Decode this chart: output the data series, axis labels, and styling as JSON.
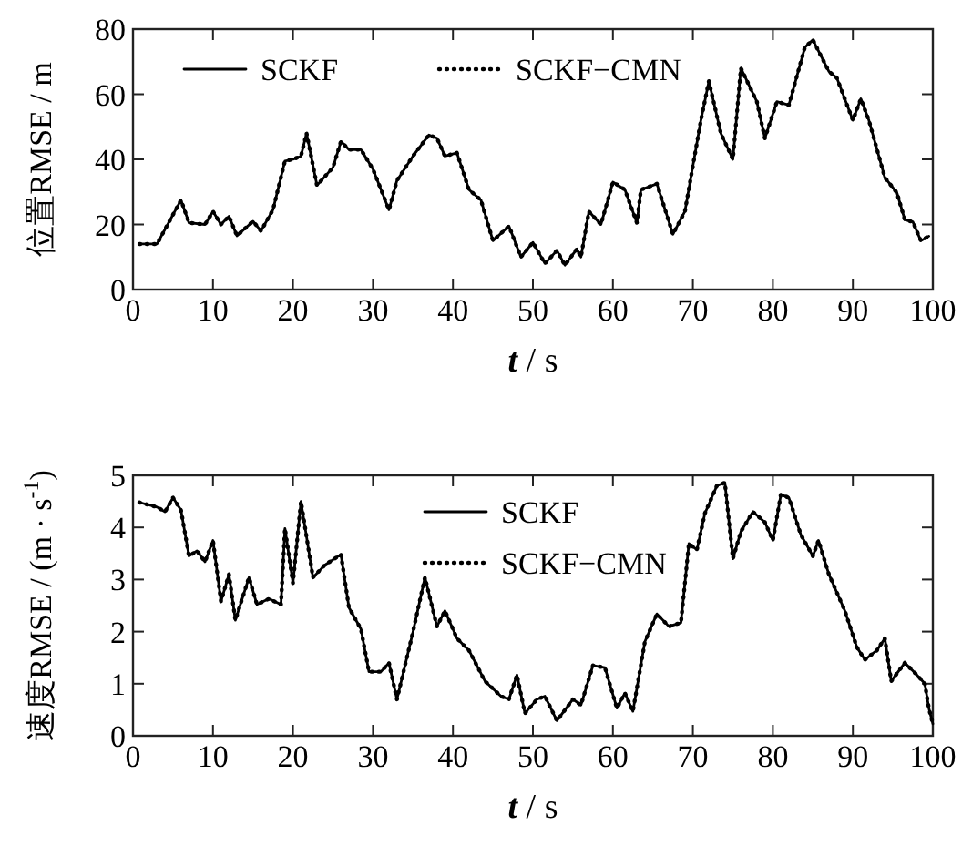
{
  "chart_data": [
    {
      "type": "line",
      "xlabel": "t / s",
      "ylabel": "位置RMSE / m",
      "x": [
        0.8,
        3,
        6,
        7,
        9,
        10,
        11,
        12,
        13,
        15,
        16,
        17.5,
        19,
        20,
        21,
        21.7,
        23,
        25,
        26,
        27,
        28.5,
        30,
        32,
        33,
        35,
        37,
        38,
        39,
        40.5,
        42,
        43.5,
        45,
        47,
        48.5,
        50,
        51.5,
        53,
        54,
        55.5,
        56,
        57,
        58.5,
        60,
        61.5,
        63,
        63.5,
        65.5,
        67.5,
        69,
        71,
        72,
        73.5,
        75,
        76,
        78,
        79,
        80.5,
        82,
        84,
        85,
        87,
        88,
        90,
        91,
        92,
        94,
        95.5,
        96.5,
        97.5,
        98.5,
        99.5
      ],
      "series": [
        {
          "name": "SCKF",
          "color": "#000000",
          "line_style": "solid",
          "values": [
            14,
            14,
            27.5,
            20.5,
            20,
            24,
            20,
            22.5,
            16.5,
            21,
            18,
            24.5,
            39.5,
            40,
            41,
            48,
            32,
            37.5,
            45.5,
            43,
            43,
            37,
            24.5,
            33.5,
            41,
            47.5,
            46.5,
            41,
            42,
            30.7,
            27.5,
            15,
            19.5,
            10,
            14.5,
            8,
            12,
            7.5,
            12.5,
            10,
            24,
            20,
            33,
            30.7,
            20.5,
            30.7,
            32.5,
            17,
            24,
            52,
            64,
            48,
            40,
            68,
            57.7,
            46.5,
            57.7,
            56.7,
            74.4,
            76.7,
            67,
            65,
            52,
            58.6,
            52,
            34.4,
            29.8,
            21.4,
            20.8,
            15,
            16.4
          ]
        },
        {
          "name": "SCKF−CMN",
          "color": "#000000",
          "line_style": "dotted",
          "values": [
            14,
            14,
            27.5,
            20.5,
            20,
            24,
            20,
            22.5,
            16.5,
            21,
            18,
            24.5,
            39.5,
            40,
            41,
            48,
            32,
            37.5,
            45.5,
            43,
            43,
            37,
            24.5,
            33.5,
            41,
            47.5,
            46.5,
            41,
            42,
            30.7,
            27.5,
            15,
            19.5,
            10,
            14.5,
            8,
            12,
            7.5,
            12.5,
            10,
            24,
            20,
            33,
            30.7,
            20.5,
            30.7,
            32.5,
            17,
            24,
            52,
            64,
            48,
            40,
            68,
            57.7,
            46.5,
            57.7,
            56.7,
            74.4,
            76.7,
            67,
            65,
            52,
            58.6,
            52,
            34.4,
            29.8,
            21.4,
            20.8,
            15,
            16.4
          ]
        }
      ],
      "xlim": [
        0,
        100
      ],
      "xticks": [
        0,
        10,
        20,
        30,
        40,
        50,
        60,
        70,
        80,
        90,
        100
      ],
      "ylim": [
        0,
        80
      ],
      "yticks": [
        0,
        20,
        40,
        60,
        80
      ],
      "legend": "top left",
      "grid": false
    },
    {
      "type": "line",
      "xlabel": "t / s",
      "ylabel": "速度RMSE / (m · s$^{-1}$)",
      "x": [
        0.8,
        3,
        4,
        5,
        6,
        7,
        8,
        9,
        10,
        11,
        12,
        12.8,
        14.5,
        15.5,
        17,
        18.5,
        19,
        20,
        21,
        22.5,
        24,
        26,
        27,
        28.5,
        29.5,
        31,
        32,
        33,
        35,
        36.5,
        38,
        39,
        40.5,
        42,
        44,
        46,
        47,
        48,
        49,
        50.5,
        51.5,
        53,
        55,
        56,
        57.5,
        59,
        60.5,
        61.5,
        62.5,
        64,
        65.5,
        67,
        68.5,
        69.5,
        70.5,
        71.5,
        73,
        74,
        75,
        76,
        77.5,
        79,
        80,
        81,
        82,
        83.5,
        85,
        85.7,
        87,
        89,
        90.5,
        91.5,
        93,
        94,
        94.8,
        96.5,
        98,
        99,
        99.5,
        100
      ],
      "series": [
        {
          "name": "SCKF",
          "color": "#000000",
          "line_style": "solid",
          "values": [
            4.48,
            4.39,
            4.3,
            4.57,
            4.33,
            3.45,
            3.55,
            3.34,
            3.75,
            2.58,
            3.1,
            2.22,
            3.04,
            2.52,
            2.63,
            2.52,
            3.98,
            2.93,
            4.5,
            3.04,
            3.28,
            3.48,
            2.46,
            2.05,
            1.23,
            1.23,
            1.4,
            0.7,
            1.99,
            3.04,
            2.1,
            2.4,
            1.87,
            1.64,
            1.05,
            0.76,
            0.7,
            1.17,
            0.43,
            0.7,
            0.76,
            0.29,
            0.7,
            0.59,
            1.35,
            1.31,
            0.53,
            0.82,
            0.47,
            1.81,
            2.34,
            2.1,
            2.17,
            3.69,
            3.57,
            4.27,
            4.8,
            4.86,
            3.4,
            3.92,
            4.3,
            4.1,
            3.75,
            4.63,
            4.57,
            3.86,
            3.45,
            3.75,
            3.1,
            2.4,
            1.7,
            1.46,
            1.64,
            1.87,
            1.05,
            1.4,
            1.17,
            1,
            0.53,
            0.23
          ]
        },
        {
          "name": "SCKF−CMN",
          "color": "#000000",
          "line_style": "dotted",
          "values": [
            4.48,
            4.39,
            4.3,
            4.57,
            4.33,
            3.45,
            3.55,
            3.34,
            3.75,
            2.58,
            3.1,
            2.22,
            3.04,
            2.52,
            2.63,
            2.52,
            3.98,
            2.93,
            4.5,
            3.04,
            3.28,
            3.48,
            2.46,
            2.05,
            1.23,
            1.23,
            1.4,
            0.7,
            1.99,
            3.04,
            2.1,
            2.4,
            1.87,
            1.64,
            1.05,
            0.76,
            0.7,
            1.17,
            0.43,
            0.7,
            0.76,
            0.29,
            0.7,
            0.59,
            1.35,
            1.31,
            0.53,
            0.82,
            0.47,
            1.81,
            2.34,
            2.1,
            2.17,
            3.69,
            3.57,
            4.27,
            4.8,
            4.86,
            3.4,
            3.92,
            4.3,
            4.1,
            3.75,
            4.63,
            4.57,
            3.86,
            3.45,
            3.75,
            3.1,
            2.4,
            1.7,
            1.46,
            1.64,
            1.87,
            1.05,
            1.4,
            1.17,
            1,
            0.53,
            0.23
          ]
        }
      ],
      "xlim": [
        0,
        100
      ],
      "xticks": [
        0,
        10,
        20,
        30,
        40,
        50,
        60,
        70,
        80,
        90,
        100
      ],
      "ylim": [
        0,
        5
      ],
      "yticks": [
        0,
        1,
        2,
        3,
        4,
        5
      ],
      "legend": "top",
      "grid": false
    }
  ]
}
